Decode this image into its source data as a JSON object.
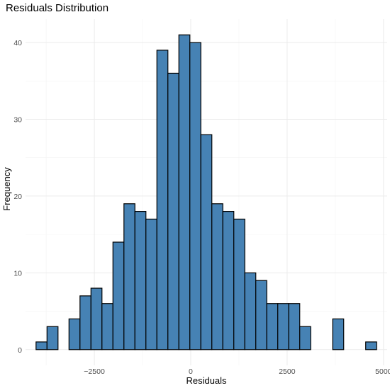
{
  "chart_data": {
    "type": "bar",
    "title": "Residuals Distribution",
    "xlabel": "Residuals",
    "ylabel": "Frequency",
    "bin_width": 285,
    "bins": [
      {
        "x": -3870,
        "count": 1
      },
      {
        "x": -3585,
        "count": 3
      },
      {
        "x": -3300,
        "count": 0
      },
      {
        "x": -3015,
        "count": 4
      },
      {
        "x": -2730,
        "count": 7
      },
      {
        "x": -2445,
        "count": 8
      },
      {
        "x": -2160,
        "count": 6
      },
      {
        "x": -1875,
        "count": 14
      },
      {
        "x": -1590,
        "count": 19
      },
      {
        "x": -1305,
        "count": 18
      },
      {
        "x": -1020,
        "count": 17
      },
      {
        "x": -735,
        "count": 39
      },
      {
        "x": -450,
        "count": 36
      },
      {
        "x": -165,
        "count": 41
      },
      {
        "x": 120,
        "count": 40
      },
      {
        "x": 405,
        "count": 28
      },
      {
        "x": 690,
        "count": 19
      },
      {
        "x": 975,
        "count": 18
      },
      {
        "x": 1260,
        "count": 17
      },
      {
        "x": 1545,
        "count": 10
      },
      {
        "x": 1830,
        "count": 9
      },
      {
        "x": 2115,
        "count": 6
      },
      {
        "x": 2400,
        "count": 6
      },
      {
        "x": 2685,
        "count": 6
      },
      {
        "x": 2970,
        "count": 3
      },
      {
        "x": 3255,
        "count": 0
      },
      {
        "x": 3540,
        "count": 0
      },
      {
        "x": 3825,
        "count": 4
      },
      {
        "x": 4110,
        "count": 0
      },
      {
        "x": 4395,
        "count": 0
      },
      {
        "x": 4680,
        "count": 1
      }
    ],
    "xlim": [
      -4285,
      5095
    ],
    "ylim": [
      -2.05,
      43.05
    ],
    "xticks": [
      -2500,
      0,
      2500,
      5000
    ],
    "xtick_labels": [
      "−2500",
      "0",
      "2500",
      "5000"
    ],
    "yticks": [
      0,
      10,
      20,
      30,
      40
    ],
    "ytick_labels": [
      "0",
      "10",
      "20",
      "30",
      "40"
    ],
    "grid": true,
    "bar_color": "#4682B4",
    "edge_color": "#000000"
  }
}
